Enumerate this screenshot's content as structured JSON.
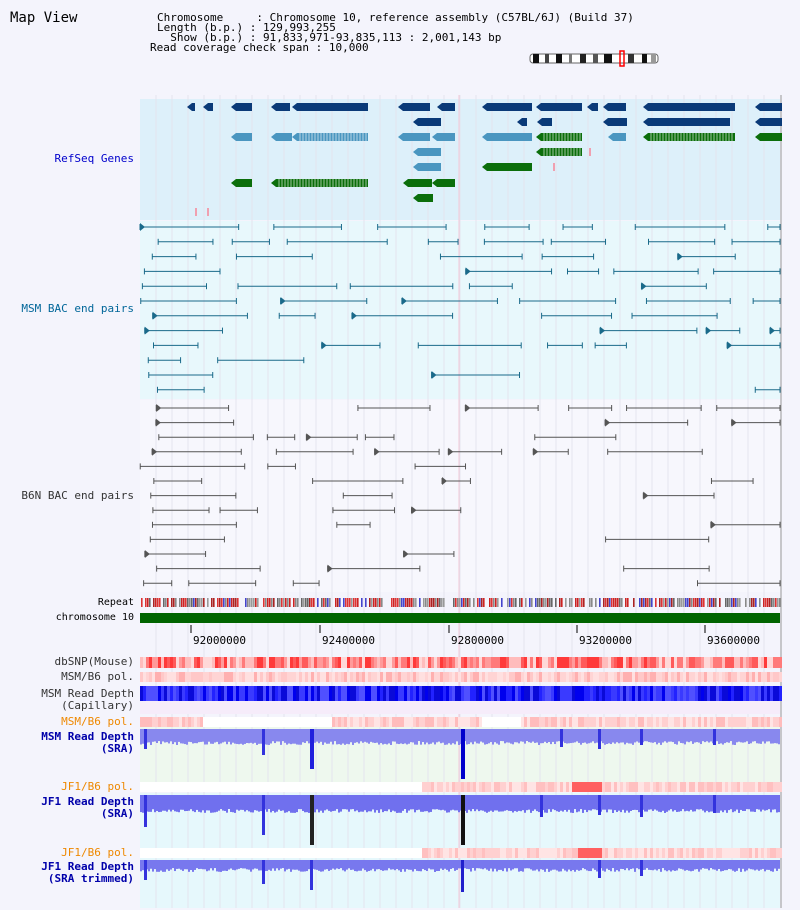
{
  "title": "Map View",
  "header": {
    "chromosome_label": "Chromosome    ",
    "chromosome_value": "Chromosome 10, reference assembly (C57BL/6J) (Build 37)",
    "length_label": "Length (b.p.)",
    "length_value": "129,993,255",
    "show_label": "  Show (b.p.)",
    "show_value": "91,833,971-93,835,113 : 2,001,143 bp",
    "coverage_label": "Read coverage check span",
    "coverage_value": "10,000"
  },
  "tracks": {
    "refseq": "RefSeq Genes",
    "msm_bac": "MSM BAC end pairs",
    "b6n_bac": "B6N BAC end pairs",
    "repeat": "Repeat",
    "chromosome": "chromosome 10",
    "dbsnp": "dbSNP(Mouse)",
    "msm_b6_pol_1": "MSM/B6 pol.",
    "msm_depth_cap": "MSM Read Depth\n(Capillary)",
    "msm_b6_pol_2": "MSM/B6 pol.",
    "msm_depth_sra": "MSM Read Depth\n(SRA)",
    "jf1_b6_pol_1": "JF1/B6 pol.",
    "jf1_depth_sra": "JF1 Read Depth\n(SRA)",
    "jf1_b6_pol_2": "JF1/B6 pol.",
    "jf1_depth_trim": "JF1 Read Depth\n(SRA trimmed)"
  },
  "axis": {
    "ticks": [
      "92000000",
      "92400000",
      "92800000",
      "93200000",
      "93600000"
    ]
  },
  "colors": {
    "refseq_label": "#0000cc",
    "msm_label": "#006699",
    "b6n_label": "#333333",
    "pol_label": "#ee8800",
    "depth_label": "#0000aa",
    "refseq_bg": "#ddf0fa",
    "msm_bg": "#e8f8fc",
    "gene_dark": "#0a3a78",
    "gene_mid": "#4a96c0",
    "gene_green": "#0b6e0b",
    "chromosome_bar": "#006400"
  }
}
